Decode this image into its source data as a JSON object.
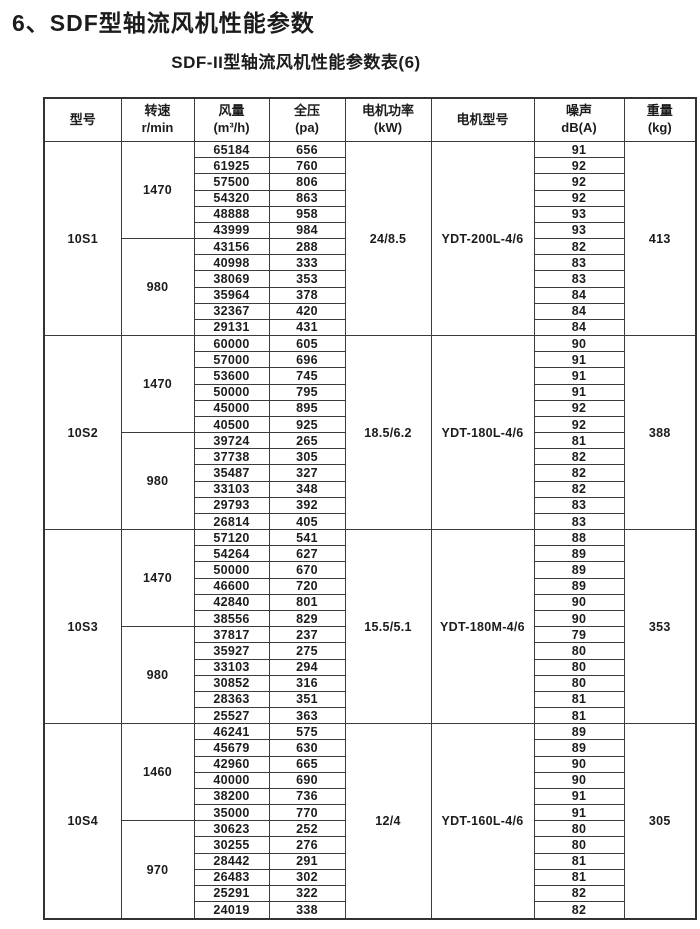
{
  "page": {
    "title": "6、SDF型轴流风机性能参数",
    "table_caption": "SDF-II型轴流风机性能参数表(6)"
  },
  "colors": {
    "background": "#ffffff",
    "text": "#1c1c1c",
    "table_border": "#3c3c3c"
  },
  "table": {
    "headers": [
      {
        "line1": "型号",
        "line2": ""
      },
      {
        "line1": "转速",
        "line2": "r/min"
      },
      {
        "line1": "风量",
        "line2": "(m³/h)"
      },
      {
        "line1": "全压",
        "line2": "(pa)"
      },
      {
        "line1": "电机功率",
        "line2": "(kW)"
      },
      {
        "line1": "电机型号",
        "line2": ""
      },
      {
        "line1": "噪声",
        "line2": "dB(A)"
      },
      {
        "line1": "重量",
        "line2": "(kg)"
      }
    ],
    "groups": [
      {
        "model": "10S1",
        "power": "24/8.5",
        "motor": "YDT-200L-4/6",
        "weight": "413",
        "speeds": [
          {
            "rpm": "1470",
            "rows": [
              [
                "65184",
                "656",
                "91"
              ],
              [
                "61925",
                "760",
                "92"
              ],
              [
                "57500",
                "806",
                "92"
              ],
              [
                "54320",
                "863",
                "92"
              ],
              [
                "48888",
                "958",
                "93"
              ],
              [
                "43999",
                "984",
                "93"
              ]
            ]
          },
          {
            "rpm": "980",
            "rows": [
              [
                "43156",
                "288",
                "82"
              ],
              [
                "40998",
                "333",
                "83"
              ],
              [
                "38069",
                "353",
                "83"
              ],
              [
                "35964",
                "378",
                "84"
              ],
              [
                "32367",
                "420",
                "84"
              ],
              [
                "29131",
                "431",
                "84"
              ]
            ]
          }
        ]
      },
      {
        "model": "10S2",
        "power": "18.5/6.2",
        "motor": "YDT-180L-4/6",
        "weight": "388",
        "speeds": [
          {
            "rpm": "1470",
            "rows": [
              [
                "60000",
                "605",
                "90"
              ],
              [
                "57000",
                "696",
                "91"
              ],
              [
                "53600",
                "745",
                "91"
              ],
              [
                "50000",
                "795",
                "91"
              ],
              [
                "45000",
                "895",
                "92"
              ],
              [
                "40500",
                "925",
                "92"
              ]
            ]
          },
          {
            "rpm": "980",
            "rows": [
              [
                "39724",
                "265",
                "81"
              ],
              [
                "37738",
                "305",
                "82"
              ],
              [
                "35487",
                "327",
                "82"
              ],
              [
                "33103",
                "348",
                "82"
              ],
              [
                "29793",
                "392",
                "83"
              ],
              [
                "26814",
                "405",
                "83"
              ]
            ]
          }
        ]
      },
      {
        "model": "10S3",
        "power": "15.5/5.1",
        "motor": "YDT-180M-4/6",
        "weight": "353",
        "speeds": [
          {
            "rpm": "1470",
            "rows": [
              [
                "57120",
                "541",
                "88"
              ],
              [
                "54264",
                "627",
                "89"
              ],
              [
                "50000",
                "670",
                "89"
              ],
              [
                "46600",
                "720",
                "89"
              ],
              [
                "42840",
                "801",
                "90"
              ],
              [
                "38556",
                "829",
                "90"
              ]
            ]
          },
          {
            "rpm": "980",
            "rows": [
              [
                "37817",
                "237",
                "79"
              ],
              [
                "35927",
                "275",
                "80"
              ],
              [
                "33103",
                "294",
                "80"
              ],
              [
                "30852",
                "316",
                "80"
              ],
              [
                "28363",
                "351",
                "81"
              ],
              [
                "25527",
                "363",
                "81"
              ]
            ]
          }
        ]
      },
      {
        "model": "10S4",
        "power": "12/4",
        "motor": "YDT-160L-4/6",
        "weight": "305",
        "speeds": [
          {
            "rpm": "1460",
            "rows": [
              [
                "46241",
                "575",
                "89"
              ],
              [
                "45679",
                "630",
                "89"
              ],
              [
                "42960",
                "665",
                "90"
              ],
              [
                "40000",
                "690",
                "90"
              ],
              [
                "38200",
                "736",
                "91"
              ],
              [
                "35000",
                "770",
                "91"
              ]
            ]
          },
          {
            "rpm": "970",
            "rows": [
              [
                "30623",
                "252",
                "80"
              ],
              [
                "30255",
                "276",
                "80"
              ],
              [
                "28442",
                "291",
                "81"
              ],
              [
                "26483",
                "302",
                "81"
              ],
              [
                "25291",
                "322",
                "82"
              ],
              [
                "24019",
                "338",
                "82"
              ]
            ]
          }
        ]
      }
    ]
  }
}
